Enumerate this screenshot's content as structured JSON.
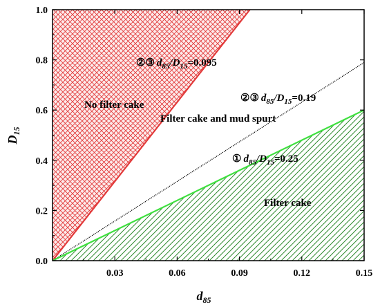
{
  "chart_data": {
    "type": "area",
    "xlabel": "d",
    "xlabel_sub": "85",
    "ylabel": "D",
    "ylabel_sub": "15",
    "xlim": [
      0,
      0.15
    ],
    "ylim": [
      0,
      1.0
    ],
    "xticks": [
      0.03,
      0.06,
      0.09,
      0.12,
      0.15
    ],
    "xtick_labels": [
      "0.03",
      "0.06",
      "0.09",
      "0.12",
      "0.15"
    ],
    "yticks": [
      0.0,
      0.2,
      0.4,
      0.6,
      0.8,
      1.0
    ],
    "ytick_labels": [
      "0.0",
      "0.2",
      "0.4",
      "0.6",
      "0.8",
      "1.0"
    ],
    "lines": [
      {
        "ratio": 0.095,
        "marker": "②③",
        "value_label": "=0.095",
        "color": "#e23a3a",
        "style": "solid"
      },
      {
        "ratio": 0.19,
        "marker": "②③",
        "value_label": "=0.19",
        "color": "#000000",
        "style": "dotted"
      },
      {
        "ratio": 0.25,
        "marker": "①",
        "value_label": "=0.25",
        "color": "#3fe03f",
        "style": "solid"
      }
    ],
    "regions": [
      {
        "name": "No filter cake",
        "color": "#e23a3a",
        "pattern": "crosshatch"
      },
      {
        "name": "Filter cake and mud spurt",
        "color": "",
        "pattern": "none"
      },
      {
        "name": "Filter cake",
        "color": "#2f8a2f",
        "pattern": "diagonal"
      }
    ],
    "ratio_label_d": "d",
    "ratio_label_d_sub": "85",
    "ratio_label_D": "/D",
    "ratio_label_D_sub": "15"
  }
}
